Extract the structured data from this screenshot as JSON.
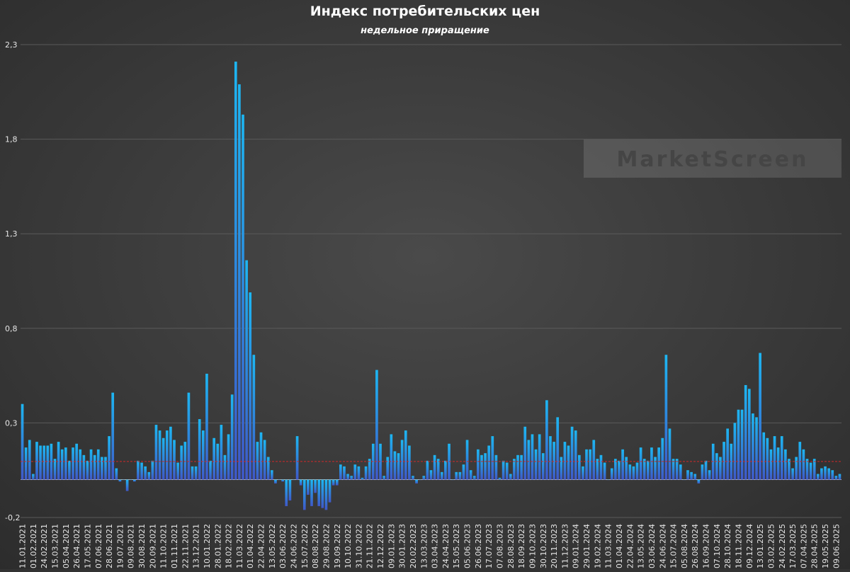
{
  "chart_data": {
    "type": "bar",
    "title": "Индекс потребительских цен",
    "subtitle": "недельное приращение",
    "watermark": "MarketScreen",
    "categories": [
      "11.01.2021",
      null,
      null,
      "01.02.2021",
      null,
      null,
      "24.02.2021",
      null,
      null,
      "15.03.2021",
      null,
      null,
      "05.04.2021",
      null,
      null,
      "26.04.2021",
      null,
      null,
      "17.05.2021",
      null,
      null,
      "07.06.2021",
      null,
      null,
      "28.06.2021",
      null,
      null,
      "19.07.2021",
      null,
      null,
      "09.08.2021",
      null,
      null,
      "30.08.2021",
      null,
      null,
      "20.09.2021",
      null,
      null,
      "11.10.2021",
      null,
      null,
      "01.11.2021",
      null,
      null,
      "22.11.2021",
      null,
      null,
      "13.12.2021",
      null,
      null,
      "10.01.2022",
      null,
      null,
      "28.01.2022",
      null,
      null,
      "18.02.2022",
      null,
      null,
      "11.03.2022",
      null,
      null,
      "01.04.2022",
      null,
      null,
      "22.04.2022",
      null,
      null,
      "13.05.2022",
      null,
      null,
      "03.06.2022",
      null,
      null,
      "24.06.2022",
      null,
      null,
      "15.07.2022",
      null,
      null,
      "08.08.2022",
      null,
      null,
      "29.08.2022",
      null,
      null,
      "19.09.2022",
      null,
      null,
      "10.10.2022",
      null,
      null,
      "31.10.2022",
      null,
      null,
      "21.11.2022",
      null,
      null,
      "12.12.2022",
      null,
      null,
      "09.01.2023",
      null,
      null,
      "30.01.2023",
      null,
      null,
      "20.02.2023",
      null,
      null,
      "13.03.2023",
      null,
      null,
      "03.04.2023",
      null,
      null,
      "24.04.2023",
      null,
      null,
      "15.05.2023",
      null,
      null,
      "05.06.2023",
      null,
      null,
      "26.06.2023",
      null,
      null,
      "17.07.2023",
      null,
      null,
      "07.08.2023",
      null,
      null,
      "28.08.2023",
      null,
      null,
      "18.09.2023",
      null,
      null,
      "09.10.2023",
      null,
      null,
      "30.10.2023",
      null,
      null,
      "20.11.2023",
      null,
      null,
      "11.12.2023",
      null,
      null,
      "09.01.2024",
      null,
      null,
      "29.01.2024",
      null,
      null,
      "19.02.2024",
      null,
      null,
      "11.03.2024",
      null,
      null,
      "01.04.2024",
      null,
      null,
      "22.04.2024",
      null,
      null,
      "13.05.2024",
      null,
      null,
      "03.06.2024",
      null,
      null,
      "24.06.2024",
      null,
      null,
      "15.07.2024",
      null,
      null,
      "05.08.2024",
      null,
      null,
      "26.08.2024",
      null,
      null,
      "16.09.2024",
      null,
      null,
      "07.10.2024",
      null,
      null,
      "28.10.2024",
      null,
      null,
      "18.11.2024",
      null,
      null,
      "09.12.2024",
      null,
      null,
      "13.01.2025",
      null,
      null,
      "03.02.2025",
      null,
      null,
      "24.02.2025",
      null,
      null,
      "17.03.2025",
      null,
      null,
      "07.04.2025",
      null,
      null,
      "28.04.2025",
      null,
      null,
      "19.05.2025",
      null,
      null,
      "09.06.2025",
      null
    ],
    "values": [
      0.4,
      0.17,
      0.21,
      0.03,
      0.2,
      0.18,
      0.18,
      0.18,
      0.19,
      0.11,
      0.2,
      0.16,
      0.17,
      0.1,
      0.17,
      0.19,
      0.16,
      0.13,
      0.1,
      0.16,
      0.13,
      0.16,
      0.12,
      0.12,
      0.23,
      0.46,
      0.06,
      -0.01,
      0.0,
      -0.06,
      0.0,
      -0.01,
      0.1,
      0.09,
      0.07,
      0.04,
      0.1,
      0.29,
      0.26,
      0.22,
      0.26,
      0.28,
      0.21,
      0.09,
      0.18,
      0.2,
      0.46,
      0.07,
      0.07,
      0.32,
      0.26,
      0.56,
      0.1,
      0.22,
      0.19,
      0.29,
      0.13,
      0.24,
      0.45,
      2.21,
      2.09,
      1.93,
      1.16,
      0.99,
      0.66,
      0.2,
      0.25,
      0.21,
      0.12,
      0.05,
      -0.02,
      0.0,
      -0.01,
      -0.14,
      -0.11,
      0.0,
      0.23,
      -0.03,
      -0.16,
      -0.08,
      -0.14,
      -0.07,
      -0.14,
      -0.15,
      -0.16,
      -0.12,
      -0.03,
      -0.03,
      0.08,
      0.07,
      0.03,
      0.02,
      0.08,
      0.07,
      0.01,
      0.07,
      0.11,
      0.19,
      0.58,
      0.19,
      0.02,
      0.12,
      0.24,
      0.15,
      0.14,
      0.21,
      0.26,
      0.18,
      0.02,
      -0.02,
      0.0,
      0.02,
      0.1,
      0.05,
      0.13,
      0.11,
      0.04,
      0.1,
      0.19,
      0.0,
      0.04,
      0.04,
      0.08,
      0.21,
      0.05,
      0.02,
      0.16,
      0.13,
      0.14,
      0.18,
      0.23,
      0.13,
      0.01,
      0.1,
      0.09,
      0.03,
      0.11,
      0.13,
      0.13,
      0.28,
      0.21,
      0.24,
      0.16,
      0.24,
      0.14,
      0.42,
      0.23,
      0.2,
      0.33,
      0.12,
      0.2,
      0.18,
      0.28,
      0.26,
      0.13,
      0.07,
      0.16,
      0.16,
      0.21,
      0.11,
      0.13,
      0.09,
      0.0,
      0.06,
      0.11,
      0.1,
      0.16,
      0.12,
      0.08,
      0.07,
      0.09,
      0.17,
      0.11,
      0.1,
      0.17,
      0.12,
      0.17,
      0.22,
      0.66,
      0.27,
      0.11,
      0.11,
      0.08,
      0.0,
      0.05,
      0.04,
      0.03,
      -0.02,
      0.08,
      0.1,
      0.05,
      0.19,
      0.14,
      0.12,
      0.2,
      0.27,
      0.19,
      0.3,
      0.37,
      0.37,
      0.5,
      0.48,
      0.35,
      0.33,
      0.67,
      0.25,
      0.22,
      0.16,
      0.23,
      0.17,
      0.23,
      0.16,
      0.11,
      0.06,
      0.12,
      0.2,
      0.16,
      0.11,
      0.09,
      0.11,
      0.03,
      0.06,
      0.07,
      0.06,
      0.05,
      0.02,
      0.03
    ],
    "gradient": [
      "#1db6f2",
      "#3f58c8"
    ],
    "ylim": [
      -0.2,
      2.3
    ],
    "yticks": [
      {
        "value": -0.2,
        "label": "-0,2"
      },
      {
        "value": 0.3,
        "label": "0,3"
      },
      {
        "value": 0.8,
        "label": "0,8"
      },
      {
        "value": 1.3,
        "label": "1,3"
      },
      {
        "value": 1.8,
        "label": "1,8"
      },
      {
        "value": 2.3,
        "label": "2,3"
      }
    ],
    "grid": true,
    "reference_line": {
      "value": 0.096,
      "color": "#d02828"
    }
  }
}
